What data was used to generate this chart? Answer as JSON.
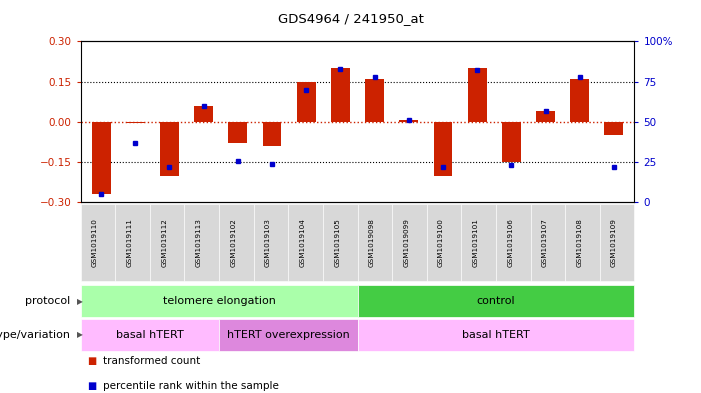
{
  "title": "GDS4964 / 241950_at",
  "samples": [
    "GSM1019110",
    "GSM1019111",
    "GSM1019112",
    "GSM1019113",
    "GSM1019102",
    "GSM1019103",
    "GSM1019104",
    "GSM1019105",
    "GSM1019098",
    "GSM1019099",
    "GSM1019100",
    "GSM1019101",
    "GSM1019106",
    "GSM1019107",
    "GSM1019108",
    "GSM1019109"
  ],
  "bar_values": [
    -0.27,
    -0.005,
    -0.2,
    0.06,
    -0.08,
    -0.09,
    0.15,
    0.2,
    0.16,
    0.005,
    -0.2,
    0.2,
    -0.15,
    0.04,
    0.16,
    -0.05
  ],
  "dot_values": [
    5,
    37,
    22,
    60,
    26,
    24,
    70,
    83,
    78,
    51,
    22,
    82,
    23,
    57,
    78,
    22
  ],
  "ylim": [
    -0.3,
    0.3
  ],
  "yticks_left": [
    -0.3,
    -0.15,
    0,
    0.15,
    0.3
  ],
  "yticks_right": [
    0,
    25,
    50,
    75,
    100
  ],
  "bar_color": "#cc2200",
  "dot_color": "#0000cc",
  "hline_color": "#cc2200",
  "dotted_color": "#000000",
  "protocol_labels": [
    {
      "text": "telomere elongation",
      "start": 0,
      "end": 7,
      "color": "#aaffaa"
    },
    {
      "text": "control",
      "start": 8,
      "end": 15,
      "color": "#44cc44"
    }
  ],
  "genotype_labels": [
    {
      "text": "basal hTERT",
      "start": 0,
      "end": 3,
      "color": "#ffbbff"
    },
    {
      "text": "hTERT overexpression",
      "start": 4,
      "end": 7,
      "color": "#dd88dd"
    },
    {
      "text": "basal hTERT",
      "start": 8,
      "end": 15,
      "color": "#ffbbff"
    }
  ],
  "protocol_row_label": "protocol",
  "genotype_row_label": "genotype/variation",
  "legend_items": [
    {
      "color": "#cc2200",
      "label": "transformed count"
    },
    {
      "color": "#0000cc",
      "label": "percentile rank within the sample"
    }
  ],
  "bg_color": "#ffffff",
  "sample_bg": "#d8d8d8"
}
